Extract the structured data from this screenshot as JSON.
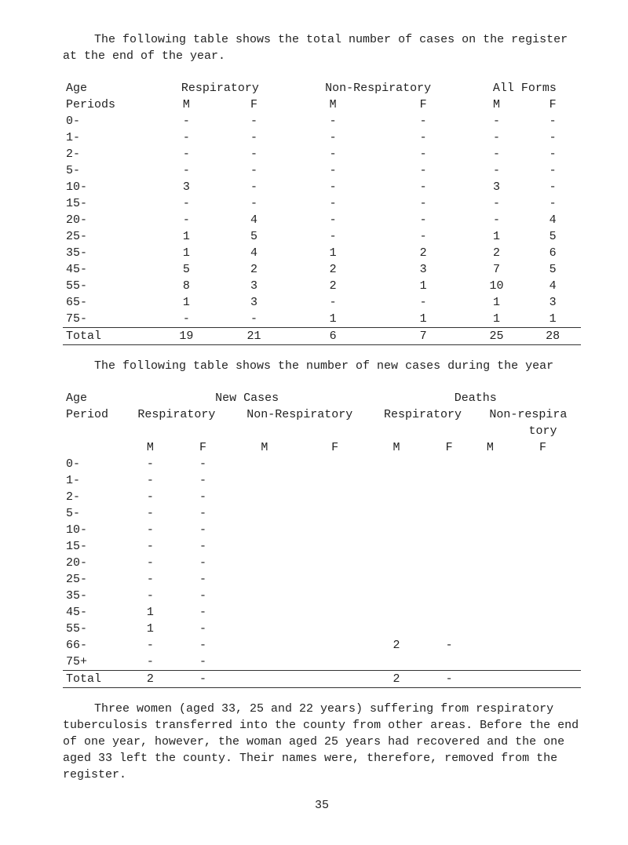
{
  "intro1": "The following table shows the total number of cases on the register at the end of the year.",
  "table1": {
    "col_age": "Age",
    "col_periods": "Periods",
    "grp_resp": "Respiratory",
    "grp_nonresp": "Non-Respiratory",
    "grp_all": "All Forms",
    "sub_m": "M",
    "sub_f": "F",
    "age_periods": [
      "0-",
      "1-",
      "2-",
      "5-",
      "10-",
      "15-",
      "20-",
      "25-",
      "35-",
      "45-",
      "55-",
      "65-",
      "75-"
    ],
    "rows": [
      [
        "-",
        "-",
        "-",
        "-",
        "-",
        "-"
      ],
      [
        "-",
        "-",
        "-",
        "-",
        "-",
        "-"
      ],
      [
        "-",
        "-",
        "-",
        "-",
        "-",
        "-"
      ],
      [
        "-",
        "-",
        "-",
        "-",
        "-",
        "-"
      ],
      [
        "3",
        "-",
        "-",
        "-",
        "3",
        "-"
      ],
      [
        "-",
        "-",
        "-",
        "-",
        "-",
        "-"
      ],
      [
        "-",
        "4",
        "-",
        "-",
        "-",
        "4"
      ],
      [
        "1",
        "5",
        "-",
        "-",
        "1",
        "5"
      ],
      [
        "1",
        "4",
        "1",
        "2",
        "2",
        "6"
      ],
      [
        "5",
        "2",
        "2",
        "3",
        "7",
        "5"
      ],
      [
        "8",
        "3",
        "2",
        "1",
        "10",
        "4"
      ],
      [
        "1",
        "3",
        "-",
        "-",
        "1",
        "3"
      ],
      [
        "-",
        "-",
        "1",
        "1",
        "1",
        "1"
      ]
    ],
    "total_label": "Total",
    "totals": [
      "19",
      "21",
      "6",
      "7",
      "25",
      "28"
    ]
  },
  "intro2": "The following table shows the number of new cases during the year",
  "table2": {
    "col_age": "Age",
    "col_period": "Period",
    "grp_new": "New Cases",
    "grp_deaths": "Deaths",
    "sub_resp": "Respiratory",
    "sub_nonresp": "Non-Respiratory",
    "sub_nonresp2a": "Non-respira",
    "sub_nonresp2b": "tory",
    "sub_m": "M",
    "sub_f": "F",
    "age_periods": [
      "0-",
      "1-",
      "2-",
      "5-",
      "10-",
      "15-",
      "20-",
      "25-",
      "35-",
      "45-",
      "55-",
      "66-",
      "75+"
    ],
    "rows": [
      [
        "-",
        "-",
        "",
        "",
        "",
        "",
        "",
        ""
      ],
      [
        "-",
        "-",
        "",
        "",
        "",
        "",
        "",
        ""
      ],
      [
        "-",
        "-",
        "",
        "",
        "",
        "",
        "",
        ""
      ],
      [
        "-",
        "-",
        "",
        "",
        "",
        "",
        "",
        ""
      ],
      [
        "-",
        "-",
        "",
        "",
        "",
        "",
        "",
        ""
      ],
      [
        "-",
        "-",
        "",
        "",
        "",
        "",
        "",
        ""
      ],
      [
        "-",
        "-",
        "",
        "",
        "",
        "",
        "",
        ""
      ],
      [
        "-",
        "-",
        "",
        "",
        "",
        "",
        "",
        ""
      ],
      [
        "-",
        "-",
        "",
        "",
        "",
        "",
        "",
        ""
      ],
      [
        "1",
        "-",
        "",
        "",
        "",
        "",
        "",
        ""
      ],
      [
        "1",
        "-",
        "",
        "",
        "",
        "",
        "",
        ""
      ],
      [
        "-",
        "-",
        "",
        "",
        "2",
        "-",
        "",
        ""
      ],
      [
        "-",
        "-",
        "",
        "",
        "",
        "",
        "",
        ""
      ]
    ],
    "total_label": "Total",
    "totals": [
      "2",
      "-",
      "",
      "",
      "2",
      "-",
      "",
      ""
    ]
  },
  "para3": "Three women (aged 33, 25 and 22 years) suffering from respiratory tuberculosis transferred into the county from other areas. Before the end of one year, however, the woman aged 25 years had recovered and the one aged 33 left the county.  Their names were, therefore, removed from the register.",
  "page_number": "35"
}
